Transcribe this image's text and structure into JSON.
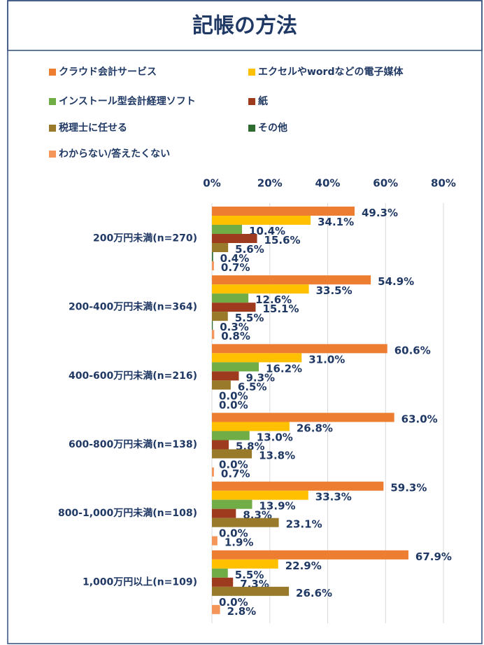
{
  "chart_data": {
    "type": "bar",
    "orientation": "horizontal",
    "title": "記帳の方法",
    "categories": [
      "200万円未満(n=270)",
      "200-400万円未満(n=364)",
      "400-600万円未満(n=216)",
      "600-800万円未満(n=138)",
      "800-1,000万円未満(n=108)",
      "1,000万円以上(n=109)"
    ],
    "series": [
      {
        "name": "クラウド会計サービス",
        "color": "#ED7D31",
        "values": [
          49.3,
          54.9,
          60.6,
          63.0,
          59.3,
          67.9
        ],
        "value_labels": [
          "49.3%",
          "54.9%",
          "60.6%",
          "63.0%",
          "59.3%",
          "67.9%"
        ]
      },
      {
        "name": "エクセルやwordなどの電子媒体",
        "color": "#FFC000",
        "values": [
          34.1,
          33.5,
          31.0,
          26.8,
          33.3,
          22.9
        ],
        "value_labels": [
          "34.1%",
          "33.5%",
          "31.0%",
          "26.8%",
          "33.3%",
          "22.9%"
        ]
      },
      {
        "name": "インストール型会計経理ソフト",
        "color": "#70AD47",
        "values": [
          10.4,
          12.6,
          16.2,
          13.0,
          13.9,
          5.5
        ],
        "value_labels": [
          "10.4%",
          "12.6%",
          "16.2%",
          "13.0%",
          "13.9%",
          "5.5%"
        ]
      },
      {
        "name": "紙",
        "color": "#9E3A1E",
        "values": [
          15.6,
          15.1,
          9.3,
          5.8,
          8.3,
          7.3
        ],
        "value_labels": [
          "15.6%",
          "15.1%",
          "9.3%",
          "5.8%",
          "8.3%",
          "7.3%"
        ]
      },
      {
        "name": "税理士に任せる",
        "color": "#997A2A",
        "values": [
          5.6,
          5.5,
          6.5,
          13.8,
          23.1,
          26.6
        ],
        "value_labels": [
          "5.6%",
          "5.5%",
          "6.5%",
          "13.8%",
          "23.1%",
          "26.6%"
        ]
      },
      {
        "name": "その他",
        "color": "#2E6B2E",
        "values": [
          0.4,
          0.3,
          0.0,
          0.0,
          0.0,
          0.0
        ],
        "value_labels": [
          "0.4%",
          "0.3%",
          "0.0%",
          "0.0%",
          "0.0%",
          "0.0%"
        ]
      },
      {
        "name": "わからない/答えたくない",
        "color": "#F4955A",
        "values": [
          0.7,
          0.8,
          0.0,
          0.7,
          1.9,
          2.8
        ],
        "value_labels": [
          "0.7%",
          "0.8%",
          "0.0%",
          "0.7%",
          "1.9%",
          "2.8%"
        ]
      }
    ],
    "xlim": [
      0,
      80
    ],
    "xticks": [
      {
        "value": 0,
        "label": "0%"
      },
      {
        "value": 20,
        "label": "20%"
      },
      {
        "value": 40,
        "label": "40%"
      },
      {
        "value": 60,
        "label": "60%"
      },
      {
        "value": 80,
        "label": "80%"
      }
    ],
    "grid": true
  }
}
